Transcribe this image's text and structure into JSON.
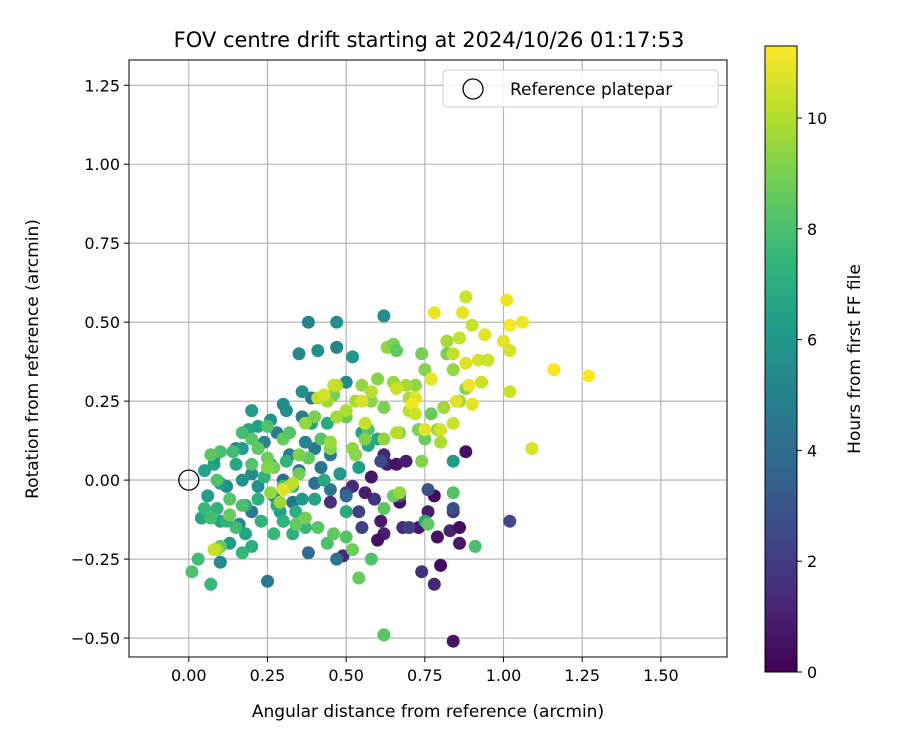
{
  "chart_data": {
    "type": "scatter",
    "title": "FOV centre drift starting at 2024/10/26 01:17:53",
    "xlabel": "Angular distance from reference (arcmin)",
    "ylabel": "Rotation from reference (arcmin)",
    "xlim": [
      -0.19,
      1.71
    ],
    "ylim": [
      -0.56,
      1.33
    ],
    "xticks": [
      0.0,
      0.25,
      0.5,
      0.75,
      1.0,
      1.25,
      1.5
    ],
    "xtick_labels": [
      "0.00",
      "0.25",
      "0.50",
      "0.75",
      "1.00",
      "1.25",
      "1.50"
    ],
    "yticks": [
      -0.5,
      -0.25,
      0.0,
      0.25,
      0.5,
      0.75,
      1.0,
      1.25
    ],
    "ytick_labels": [
      "−0.50",
      "−0.25",
      "0.00",
      "0.25",
      "0.50",
      "0.75",
      "1.00",
      "1.25"
    ],
    "grid": true,
    "legend": {
      "position": "top-right",
      "entries": [
        "Reference platepar"
      ]
    },
    "reference_point": {
      "x": 0.0,
      "y": 0.0,
      "marker": "open-circle",
      "color": "#000000"
    },
    "colorbar": {
      "label": "Hours from first FF file",
      "colormap": "viridis",
      "range": [
        0,
        11.3
      ],
      "ticks": [
        0,
        2,
        4,
        6,
        8,
        10
      ],
      "tick_labels": [
        "0",
        "2",
        "4",
        "6",
        "8",
        "10"
      ]
    },
    "points_format": [
      "x",
      "y",
      "hours"
    ],
    "points": [
      [
        0.84,
        -0.51,
        0.6
      ],
      [
        0.78,
        -0.33,
        1.2
      ],
      [
        0.74,
        -0.29,
        1.5
      ],
      [
        0.8,
        -0.27,
        0.3
      ],
      [
        0.86,
        -0.2,
        0.8
      ],
      [
        0.79,
        -0.18,
        0.5
      ],
      [
        0.83,
        -0.16,
        1.1
      ],
      [
        0.86,
        -0.15,
        0.4
      ],
      [
        0.73,
        -0.15,
        0.7
      ],
      [
        0.68,
        -0.15,
        1.4
      ],
      [
        0.76,
        -0.1,
        0.9
      ],
      [
        0.84,
        -0.1,
        1.6
      ],
      [
        0.78,
        -0.05,
        0.3
      ],
      [
        0.62,
        -0.17,
        1.0
      ],
      [
        0.61,
        -0.13,
        0.8
      ],
      [
        0.55,
        -0.15,
        2.2
      ],
      [
        0.6,
        -0.19,
        0.5
      ],
      [
        0.67,
        -0.07,
        0.6
      ],
      [
        0.59,
        -0.06,
        1.7
      ],
      [
        0.56,
        -0.04,
        0.9
      ],
      [
        0.52,
        -0.02,
        1.3
      ],
      [
        0.5,
        -0.04,
        2.0
      ],
      [
        0.45,
        -0.07,
        1.5
      ],
      [
        0.49,
        -0.24,
        1.3
      ],
      [
        0.63,
        0.05,
        1.0
      ],
      [
        0.66,
        0.05,
        0.6
      ],
      [
        0.62,
        0.08,
        1.2
      ],
      [
        0.69,
        0.06,
        0.9
      ],
      [
        0.88,
        0.09,
        0.5
      ],
      [
        0.58,
        0.01,
        0.7
      ],
      [
        1.02,
        -0.13,
        2.5
      ],
      [
        0.7,
        -0.15,
        2.1
      ],
      [
        0.54,
        -0.1,
        2.3
      ],
      [
        0.76,
        -0.03,
        3.0
      ],
      [
        0.67,
        -0.05,
        2.9
      ],
      [
        0.84,
        -0.09,
        2.7
      ],
      [
        0.61,
        0.06,
        2.6
      ],
      [
        0.25,
        -0.32,
        4.6
      ],
      [
        0.47,
        -0.25,
        4.3
      ],
      [
        0.38,
        -0.23,
        4.1
      ],
      [
        0.1,
        -0.26,
        5.3
      ],
      [
        0.16,
        -0.14,
        5.1
      ],
      [
        0.3,
        -0.13,
        4.8
      ],
      [
        0.2,
        -0.1,
        4.6
      ],
      [
        0.33,
        -0.07,
        4.4
      ],
      [
        0.27,
        -0.05,
        4.9
      ],
      [
        0.4,
        -0.01,
        4.2
      ],
      [
        0.45,
        -0.03,
        4.5
      ],
      [
        0.5,
        -0.05,
        3.8
      ],
      [
        0.3,
        0.0,
        4.0
      ],
      [
        0.35,
        0.03,
        4.3
      ],
      [
        0.42,
        0.04,
        4.4
      ],
      [
        0.26,
        0.05,
        4.7
      ],
      [
        0.32,
        0.08,
        4.9
      ],
      [
        0.4,
        0.1,
        4.5
      ],
      [
        0.45,
        0.08,
        4.6
      ],
      [
        0.37,
        0.12,
        5.0
      ],
      [
        0.28,
        0.15,
        4.8
      ],
      [
        0.24,
        0.12,
        5.2
      ],
      [
        0.2,
        0.02,
        5.5
      ],
      [
        0.15,
        0.1,
        5.1
      ],
      [
        0.17,
        0.0,
        5.8
      ],
      [
        0.12,
        -0.02,
        5.6
      ],
      [
        0.22,
        -0.02,
        5.7
      ],
      [
        0.36,
        0.2,
        4.8
      ],
      [
        0.39,
        0.26,
        4.5
      ],
      [
        0.38,
        0.5,
        5.0
      ],
      [
        0.35,
        0.4,
        5.4
      ],
      [
        0.41,
        0.41,
        5.7
      ],
      [
        0.47,
        0.42,
        5.2
      ],
      [
        0.47,
        0.5,
        5.6
      ],
      [
        0.5,
        0.31,
        5.3
      ],
      [
        0.52,
        0.39,
        5.9
      ],
      [
        0.62,
        0.52,
        5.6
      ],
      [
        0.36,
        0.28,
        5.6
      ],
      [
        0.31,
        0.22,
        5.6
      ],
      [
        0.3,
        0.24,
        5.5
      ],
      [
        0.26,
        0.19,
        5.8
      ],
      [
        0.2,
        0.22,
        6.2
      ],
      [
        0.22,
        0.17,
        6.4
      ],
      [
        0.19,
        0.16,
        6.5
      ],
      [
        0.17,
        0.1,
        6.3
      ],
      [
        0.08,
        0.05,
        6.6
      ],
      [
        0.05,
        0.03,
        6.6
      ],
      [
        0.08,
        0.07,
        6.2
      ],
      [
        0.1,
        -0.01,
        6.0
      ],
      [
        0.06,
        -0.05,
        6.3
      ],
      [
        0.04,
        -0.12,
        6.7
      ],
      [
        0.1,
        -0.13,
        6.5
      ],
      [
        0.13,
        -0.2,
        6.2
      ],
      [
        0.18,
        -0.17,
        6.6
      ],
      [
        0.23,
        -0.13,
        6.1
      ],
      [
        0.29,
        -0.1,
        6.3
      ],
      [
        0.33,
        -0.02,
        6.4
      ],
      [
        0.36,
        -0.06,
        6.1
      ],
      [
        0.4,
        -0.06,
        6.6
      ],
      [
        0.43,
        0.0,
        6.8
      ],
      [
        0.48,
        0.02,
        6.0
      ],
      [
        0.5,
        -0.1,
        6.9
      ],
      [
        0.54,
        0.04,
        6.4
      ],
      [
        0.57,
        0.11,
        6.7
      ],
      [
        0.55,
        0.15,
        6.6
      ],
      [
        0.6,
        0.13,
        6.8
      ],
      [
        0.44,
        0.18,
        6.9
      ],
      [
        0.39,
        0.18,
        6.6
      ],
      [
        0.75,
        -0.13,
        6.8
      ],
      [
        0.73,
        0.16,
        6.5
      ],
      [
        0.84,
        0.06,
        6.2
      ],
      [
        0.15,
        0.05,
        6.8
      ],
      [
        0.18,
        -0.08,
        7.0
      ],
      [
        0.24,
        0.01,
        7.2
      ],
      [
        0.22,
        -0.06,
        7.3
      ],
      [
        0.28,
        -0.08,
        7.0
      ],
      [
        0.31,
        0.06,
        7.3
      ],
      [
        0.34,
        -0.1,
        7.1
      ],
      [
        0.37,
        -0.15,
        7.5
      ],
      [
        0.33,
        -0.17,
        7.2
      ],
      [
        0.3,
        -0.13,
        7.4
      ],
      [
        0.27,
        -0.17,
        7.6
      ],
      [
        0.23,
        -0.13,
        7.3
      ],
      [
        0.2,
        -0.21,
        7.1
      ],
      [
        0.17,
        -0.23,
        7.5
      ],
      [
        0.15,
        -0.15,
        7.8
      ],
      [
        0.12,
        -0.13,
        7.4
      ],
      [
        0.09,
        -0.09,
        7.2
      ],
      [
        0.05,
        -0.09,
        7.6
      ],
      [
        0.07,
        -0.12,
        7.9
      ],
      [
        0.03,
        -0.25,
        7.8
      ],
      [
        0.01,
        -0.29,
        8.1
      ],
      [
        0.07,
        -0.33,
        7.6
      ],
      [
        0.1,
        -0.21,
        8.5
      ],
      [
        0.13,
        -0.06,
        8.3
      ],
      [
        0.17,
        -0.08,
        8.0
      ],
      [
        0.2,
        0.05,
        8.2
      ],
      [
        0.22,
        0.1,
        8.5
      ],
      [
        0.25,
        0.07,
        8.8
      ],
      [
        0.27,
        0.04,
        8.9
      ],
      [
        0.3,
        0.13,
        8.6
      ],
      [
        0.32,
        0.15,
        8.3
      ],
      [
        0.25,
        0.17,
        8.1
      ],
      [
        0.2,
        0.13,
        8.4
      ],
      [
        0.17,
        0.15,
        7.9
      ],
      [
        0.14,
        0.09,
        7.8
      ],
      [
        0.1,
        0.09,
        8.0
      ],
      [
        0.07,
        0.08,
        8.4
      ],
      [
        0.09,
        0.0,
        8.1
      ],
      [
        0.13,
        -0.11,
        8.7
      ],
      [
        0.3,
        -0.02,
        8.2
      ],
      [
        0.34,
        -0.14,
        8.6
      ],
      [
        0.37,
        -0.12,
        8.9
      ],
      [
        0.41,
        -0.15,
        8.3
      ],
      [
        0.44,
        -0.2,
        8.0
      ],
      [
        0.46,
        -0.17,
        8.5
      ],
      [
        0.5,
        -0.18,
        8.2
      ],
      [
        0.52,
        -0.22,
        8.8
      ],
      [
        0.54,
        -0.31,
        8.6
      ],
      [
        0.58,
        -0.25,
        8.1
      ],
      [
        0.62,
        -0.09,
        8.4
      ],
      [
        0.65,
        -0.05,
        8.7
      ],
      [
        0.62,
        -0.49,
        8.3
      ],
      [
        0.76,
        -0.14,
        8.5
      ],
      [
        0.84,
        -0.04,
        8.2
      ],
      [
        0.91,
        -0.21,
        8.0
      ],
      [
        0.57,
        0.16,
        8.1
      ],
      [
        0.5,
        0.2,
        8.6
      ],
      [
        0.46,
        0.27,
        8.9
      ],
      [
        0.42,
        0.13,
        8.3
      ],
      [
        0.38,
        0.07,
        8.5
      ],
      [
        0.35,
        0.02,
        8.8
      ],
      [
        0.4,
        0.2,
        9.0
      ],
      [
        0.45,
        0.1,
        9.2
      ],
      [
        0.52,
        0.1,
        9.4
      ],
      [
        0.56,
        0.13,
        9.1
      ],
      [
        0.58,
        0.25,
        9.3
      ],
      [
        0.55,
        0.3,
        9.5
      ],
      [
        0.6,
        0.32,
        9.2
      ],
      [
        0.63,
        0.42,
        9.4
      ],
      [
        0.65,
        0.43,
        9.0
      ],
      [
        0.66,
        0.41,
        8.5
      ],
      [
        0.62,
        0.23,
        9.0
      ],
      [
        0.67,
        0.15,
        9.3
      ],
      [
        0.73,
        0.16,
        9.1
      ],
      [
        0.75,
        0.13,
        8.8
      ],
      [
        0.77,
        0.21,
        8.6
      ],
      [
        0.72,
        0.3,
        9.4
      ],
      [
        0.75,
        0.35,
        9.2
      ],
      [
        0.74,
        0.4,
        8.9
      ],
      [
        0.82,
        0.4,
        9.0
      ],
      [
        0.84,
        0.35,
        9.5
      ],
      [
        0.82,
        0.44,
        9.8
      ],
      [
        0.86,
        0.25,
        9.6
      ],
      [
        0.88,
        0.29,
        9.3
      ],
      [
        0.81,
        0.23,
        9.7
      ],
      [
        0.79,
        0.16,
        9.5
      ],
      [
        0.8,
        0.12,
        9.9
      ],
      [
        0.74,
        0.06,
        9.1
      ],
      [
        0.65,
        0.31,
        9.6
      ],
      [
        0.69,
        0.3,
        9.8
      ],
      [
        0.7,
        0.26,
        10.0
      ],
      [
        0.7,
        0.22,
        10.2
      ],
      [
        0.47,
        0.2,
        9.7
      ],
      [
        0.5,
        0.22,
        9.9
      ],
      [
        0.53,
        0.25,
        9.8
      ],
      [
        0.58,
        0.28,
        10.1
      ],
      [
        0.47,
        0.3,
        10.0
      ],
      [
        0.44,
        0.25,
        9.6
      ],
      [
        0.37,
        0.18,
        9.5
      ],
      [
        0.35,
        0.08,
        9.0
      ],
      [
        0.32,
        -0.02,
        9.8
      ],
      [
        0.29,
        -0.07,
        9.6
      ],
      [
        0.26,
        -0.04,
        9.4
      ],
      [
        0.25,
        0.04,
        9.2
      ],
      [
        0.09,
        -0.22,
        9.7
      ],
      [
        0.67,
        -0.04,
        9.5
      ],
      [
        0.62,
        0.13,
        9.4
      ],
      [
        0.66,
        0.15,
        10.1
      ],
      [
        0.56,
        0.18,
        10.3
      ],
      [
        0.45,
        0.12,
        9.6
      ],
      [
        0.53,
        0.08,
        9.3
      ],
      [
        0.41,
        0.26,
        10.2
      ],
      [
        0.88,
        0.58,
        10.5
      ],
      [
        0.86,
        0.45,
        10.3
      ],
      [
        0.9,
        0.49,
        10.4
      ],
      [
        0.92,
        0.38,
        10.6
      ],
      [
        0.94,
        0.46,
        10.8
      ],
      [
        0.93,
        0.31,
        10.5
      ],
      [
        0.88,
        0.37,
        10.7
      ],
      [
        0.9,
        0.24,
        10.9
      ],
      [
        0.89,
        0.3,
        11.0
      ],
      [
        0.85,
        0.25,
        10.8
      ],
      [
        0.8,
        0.16,
        10.6
      ],
      [
        0.84,
        0.18,
        10.4
      ],
      [
        0.77,
        0.32,
        10.9
      ],
      [
        0.72,
        0.26,
        10.7
      ],
      [
        0.71,
        0.24,
        11.1
      ],
      [
        0.72,
        0.21,
        10.5
      ],
      [
        0.75,
        0.16,
        10.8
      ],
      [
        0.78,
        0.53,
        11.0
      ],
      [
        0.87,
        0.53,
        10.9
      ],
      [
        1.01,
        0.57,
        11.0
      ],
      [
        1.02,
        0.49,
        11.2
      ],
      [
        1.06,
        0.5,
        11.1
      ],
      [
        1.0,
        0.44,
        10.8
      ],
      [
        1.02,
        0.41,
        10.6
      ],
      [
        0.95,
        0.38,
        10.4
      ],
      [
        1.02,
        0.28,
        10.5
      ],
      [
        1.16,
        0.35,
        11.2
      ],
      [
        1.27,
        0.33,
        11.3
      ],
      [
        1.09,
        0.1,
        10.7
      ],
      [
        0.84,
        0.4,
        10.3
      ],
      [
        0.66,
        0.29,
        10.5
      ],
      [
        0.55,
        0.25,
        10.7
      ],
      [
        0.46,
        0.3,
        10.4
      ],
      [
        0.43,
        0.27,
        10.6
      ],
      [
        0.3,
        -0.03,
        10.8
      ],
      [
        0.33,
        -0.01,
        10.2
      ],
      [
        0.08,
        -0.22,
        10.4
      ]
    ]
  }
}
